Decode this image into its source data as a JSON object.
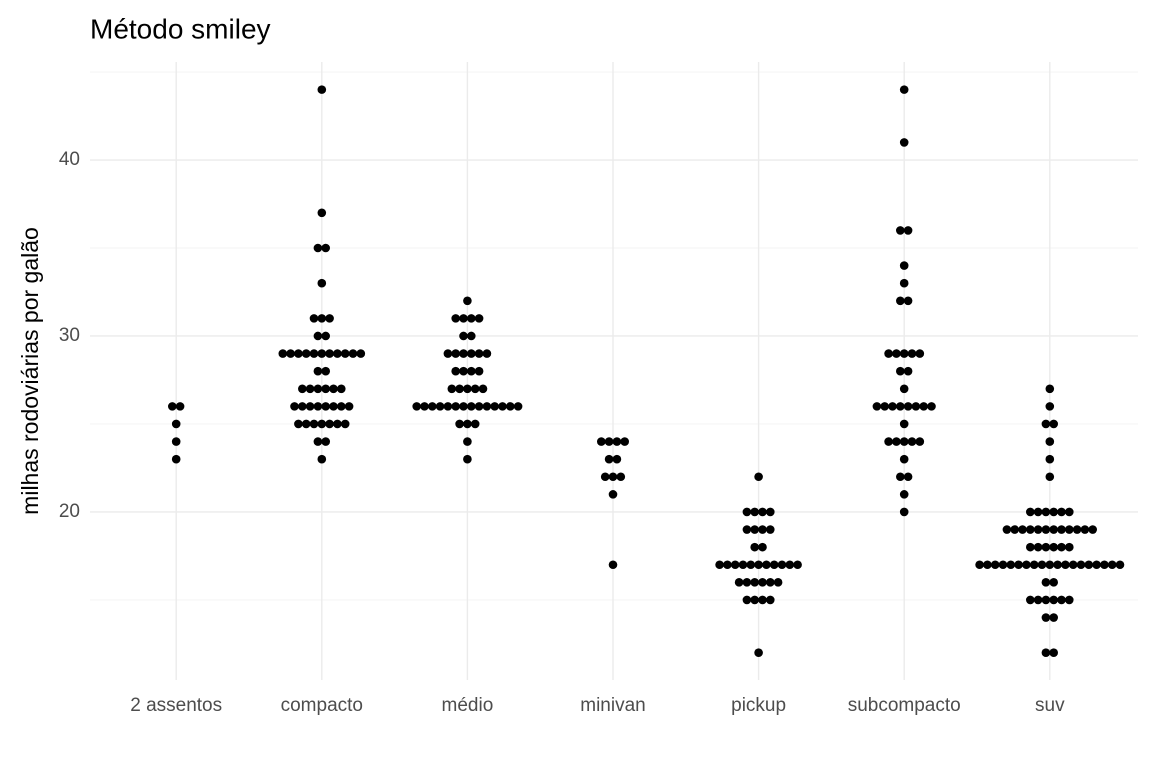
{
  "chart_data": {
    "type": "beeswarm",
    "title": "Método smiley",
    "y_label": "milhas rodoviárias por galão",
    "categories": [
      "2 assentos",
      "compacto",
      "médio",
      "minivan",
      "pickup",
      "subcompacto",
      "suv"
    ],
    "values": [
      [
        26,
        23,
        26,
        25,
        24
      ],
      [
        44,
        37,
        35,
        35,
        33,
        31,
        31,
        31,
        30,
        30,
        29,
        29,
        29,
        29,
        29,
        29,
        29,
        29,
        29,
        29,
        29,
        28,
        28,
        27,
        27,
        27,
        27,
        27,
        27,
        26,
        26,
        26,
        26,
        26,
        26,
        26,
        26,
        25,
        25,
        25,
        25,
        25,
        25,
        25,
        24,
        24,
        23
      ],
      [
        32,
        31,
        31,
        31,
        31,
        30,
        30,
        29,
        29,
        29,
        29,
        29,
        29,
        28,
        28,
        28,
        28,
        27,
        27,
        27,
        27,
        27,
        26,
        26,
        26,
        26,
        26,
        26,
        26,
        26,
        26,
        26,
        26,
        26,
        26,
        26,
        25,
        25,
        25,
        24,
        23
      ],
      [
        24,
        24,
        24,
        24,
        23,
        23,
        22,
        22,
        22,
        21,
        17
      ],
      [
        22,
        20,
        20,
        20,
        20,
        19,
        19,
        19,
        19,
        18,
        18,
        17,
        17,
        17,
        17,
        17,
        17,
        17,
        17,
        17,
        17,
        17,
        16,
        16,
        16,
        16,
        16,
        16,
        15,
        15,
        15,
        15,
        12
      ],
      [
        44,
        41,
        36,
        36,
        34,
        33,
        32,
        32,
        29,
        29,
        29,
        29,
        29,
        28,
        28,
        27,
        26,
        26,
        26,
        26,
        26,
        26,
        26,
        26,
        25,
        24,
        24,
        24,
        24,
        24,
        23,
        22,
        22,
        21,
        20
      ],
      [
        27,
        26,
        25,
        25,
        24,
        23,
        22,
        20,
        20,
        20,
        20,
        20,
        20,
        19,
        19,
        19,
        19,
        19,
        19,
        19,
        19,
        19,
        19,
        19,
        19,
        18,
        18,
        18,
        18,
        18,
        18,
        17,
        17,
        17,
        17,
        17,
        17,
        17,
        17,
        17,
        17,
        17,
        17,
        17,
        17,
        17,
        17,
        17,
        17,
        17,
        16,
        16,
        15,
        15,
        15,
        15,
        15,
        15,
        14,
        14,
        12,
        12
      ]
    ],
    "color": "#000000",
    "ylim": [
      10.45,
      45.57
    ],
    "yticks": [
      20,
      30,
      40
    ],
    "minor_yticks": [
      15,
      25,
      35,
      45
    ],
    "grid": true
  }
}
